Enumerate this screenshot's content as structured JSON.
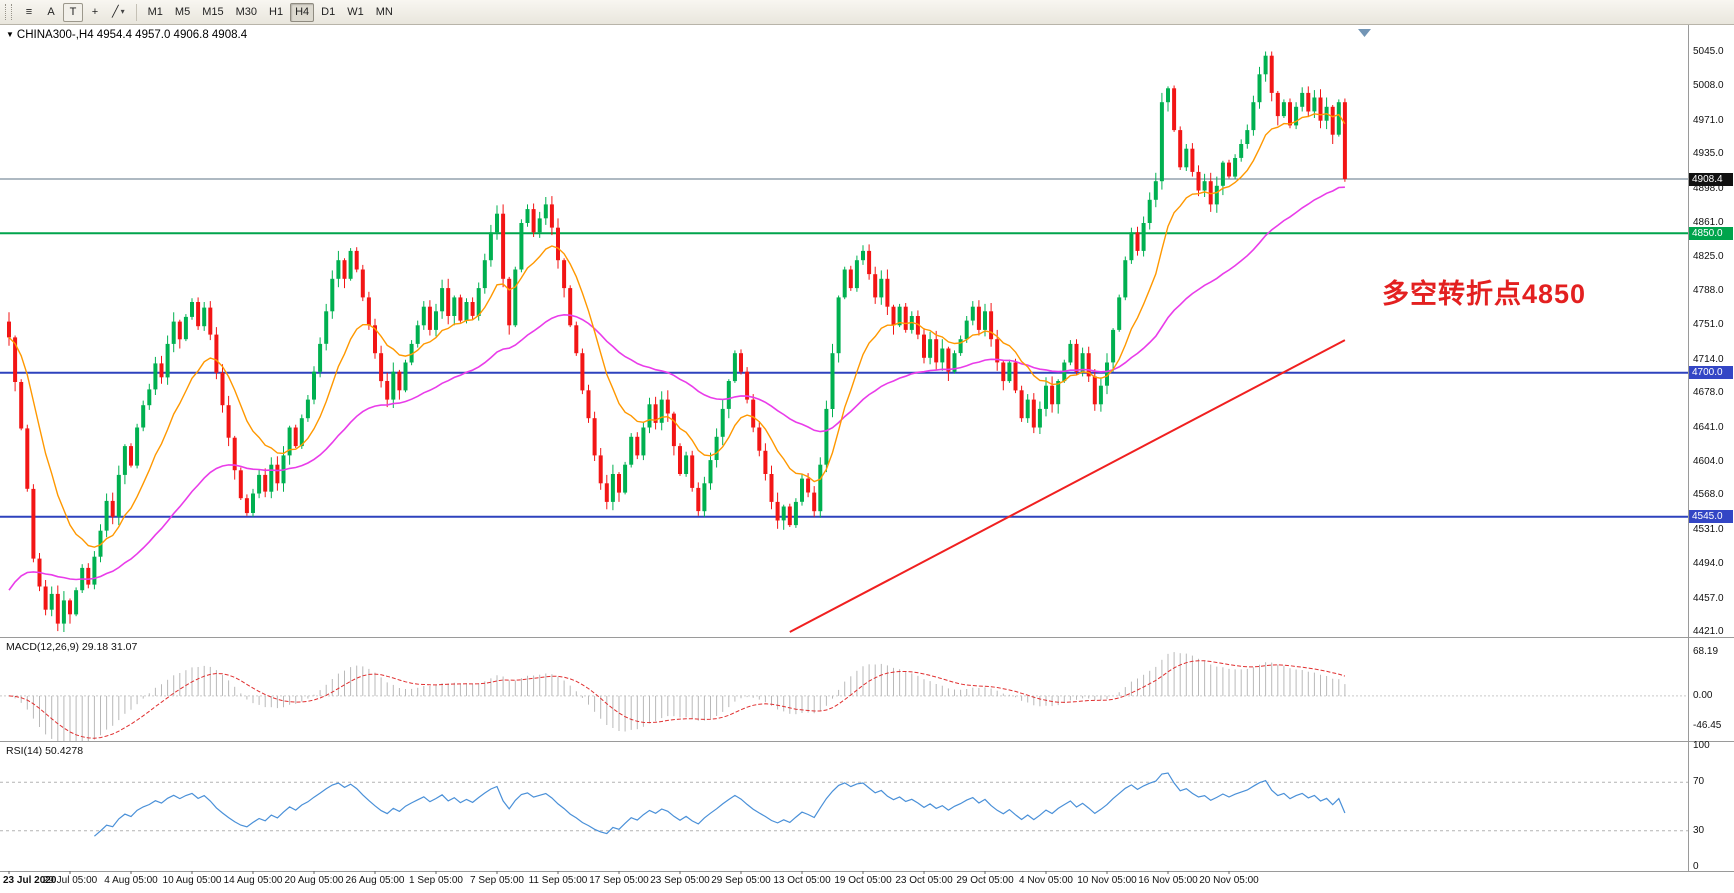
{
  "toolbar": {
    "tool_a": "A",
    "tool_t": "T",
    "icons": {
      "menu": "≡",
      "crosshair": "+",
      "draw": "╱",
      "caret": "▾"
    },
    "timeframes": [
      "M1",
      "M5",
      "M15",
      "M30",
      "H1",
      "H4",
      "D1",
      "W1",
      "MN"
    ],
    "selected_timeframe": "H4"
  },
  "chart": {
    "collapse_icon": "▼",
    "symbol_label": "CHINA300-,H4 4954.4 4957.0 4906.8 4908.4",
    "annotation": {
      "text": "多空转折点4850",
      "color": "#e32020"
    },
    "y_ticks": [
      "5045.0",
      "5008.0",
      "4971.0",
      "4935.0",
      "4898.0",
      "4861.0",
      "4825.0",
      "4788.0",
      "4751.0",
      "4714.0",
      "4678.0",
      "4641.0",
      "4604.0",
      "4568.0",
      "4531.0",
      "4494.0",
      "4457.0",
      "4421.0"
    ],
    "tags": [
      {
        "text": "4908.4",
        "price": 4908.4,
        "bg": "#111111"
      },
      {
        "text": "4850.0",
        "price": 4850.0,
        "bg": "#00a44c"
      },
      {
        "text": "4700.0",
        "price": 4700.0,
        "bg": "#3346c5"
      },
      {
        "text": "4545.0",
        "price": 4545.0,
        "bg": "#3346c5"
      }
    ],
    "hlines": [
      {
        "price": 4908.4,
        "color": "#5d7386",
        "width": 1
      },
      {
        "price": 4850.0,
        "color": "#00a44c",
        "width": 2
      },
      {
        "price": 4700.0,
        "color": "#2e42bd",
        "width": 2
      },
      {
        "price": 4545.0,
        "color": "#2e42bd",
        "width": 2
      }
    ],
    "trendline": {
      "i1": 128,
      "p1": 4421,
      "i2": 219,
      "p2": 4735,
      "color": "#f02020",
      "width": 2
    },
    "colors": {
      "up": "#00b050",
      "down": "#f21515",
      "ma_fast": "#ff9800",
      "ma_slow": "#e93ce9",
      "macd_hist": "#b9b9b9",
      "macd_signal": "#e03030",
      "rsi_line": "#4a90d8"
    }
  },
  "chart_data": {
    "type": "candlestick",
    "title": "CHINA300-,H4",
    "symbol": "CHINA300-",
    "timeframe": "H4",
    "ohlc_current": {
      "open": 4954.4,
      "high": 4957.0,
      "low": 4906.8,
      "close": 4908.4
    },
    "price_axis": {
      "min": 4421.0,
      "max": 5045.0
    },
    "first_open": 4755,
    "closes": [
      4738,
      4690,
      4640,
      4575,
      4500,
      4470,
      4445,
      4462,
      4430,
      4455,
      4440,
      4466,
      4490,
      4472,
      4502,
      4530,
      4562,
      4545,
      4590,
      4621,
      4600,
      4641,
      4665,
      4682,
      4710,
      4695,
      4731,
      4755,
      4736,
      4760,
      4776,
      4750,
      4770,
      4741,
      4700,
      4665,
      4630,
      4595,
      4565,
      4549,
      4570,
      4590,
      4572,
      4601,
      4581,
      4611,
      4641,
      4621,
      4651,
      4671,
      4701,
      4731,
      4766,
      4801,
      4821,
      4801,
      4831,
      4811,
      4781,
      4751,
      4721,
      4691,
      4671,
      4701,
      4681,
      4711,
      4731,
      4751,
      4771,
      4746,
      4766,
      4791,
      4761,
      4781,
      4756,
      4776,
      4761,
      4791,
      4821,
      4851,
      4871,
      4801,
      4751,
      4811,
      4861,
      4876,
      4851,
      4866,
      4881,
      4856,
      4821,
      4791,
      4751,
      4721,
      4681,
      4651,
      4611,
      4581,
      4561,
      4591,
      4571,
      4601,
      4631,
      4611,
      4641,
      4666,
      4646,
      4671,
      4656,
      4621,
      4591,
      4611,
      4576,
      4551,
      4581,
      4606,
      4631,
      4661,
      4691,
      4721,
      4701,
      4671,
      4641,
      4616,
      4591,
      4561,
      4541,
      4556,
      4536,
      4561,
      4586,
      4571,
      4551,
      4601,
      4661,
      4721,
      4781,
      4811,
      4791,
      4821,
      4831,
      4806,
      4781,
      4801,
      4771,
      4751,
      4771,
      4746,
      4761,
      4741,
      4716,
      4736,
      4711,
      4726,
      4701,
      4721,
      4736,
      4756,
      4771,
      4746,
      4766,
      4736,
      4711,
      4691,
      4711,
      4681,
      4651,
      4671,
      4641,
      4661,
      4686,
      4666,
      4691,
      4711,
      4731,
      4701,
      4721,
      4696,
      4666,
      4686,
      4711,
      4746,
      4781,
      4821,
      4851,
      4831,
      4861,
      4886,
      4906,
      4991,
      5006,
      4961,
      4921,
      4941,
      4916,
      4896,
      4906,
      4881,
      4901,
      4926,
      4911,
      4931,
      4946,
      4961,
      4991,
      5021,
      5041,
      5001,
      4976,
      4991,
      4966,
      4986,
      5001,
      4981,
      4996,
      4971,
      4986,
      4956,
      4991,
      4908.4
    ],
    "ma": {
      "fast_period": 13,
      "slow_period": 50,
      "slow_seed": 4455
    },
    "x_labels": [
      {
        "text": "23 Jul 2020",
        "index": 0
      },
      {
        "text": "29 Jul 05:00",
        "index": 10
      },
      {
        "text": "4 Aug 05:00",
        "index": 20
      },
      {
        "text": "10 Aug 05:00",
        "index": 30
      },
      {
        "text": "14 Aug 05:00",
        "index": 40
      },
      {
        "text": "20 Aug 05:00",
        "index": 50
      },
      {
        "text": "26 Aug 05:00",
        "index": 60
      },
      {
        "text": "1 Sep 05:00",
        "index": 70
      },
      {
        "text": "7 Sep 05:00",
        "index": 80
      },
      {
        "text": "11 Sep 05:00",
        "index": 90
      },
      {
        "text": "17 Sep 05:00",
        "index": 100
      },
      {
        "text": "23 Sep 05:00",
        "index": 110
      },
      {
        "text": "29 Sep 05:00",
        "index": 120
      },
      {
        "text": "13 Oct 05:00",
        "index": 130
      },
      {
        "text": "19 Oct 05:00",
        "index": 140
      },
      {
        "text": "23 Oct 05:00",
        "index": 150
      },
      {
        "text": "29 Oct 05:00",
        "index": 160
      },
      {
        "text": "4 Nov 05:00",
        "index": 170
      },
      {
        "text": "10 Nov 05:00",
        "index": 180
      },
      {
        "text": "16 Nov 05:00",
        "index": 190
      },
      {
        "text": "20 Nov 05:00",
        "index": 200
      }
    ]
  },
  "macd": {
    "label": "MACD(12,26,9) 29.18 31.07",
    "params": {
      "fast": 12,
      "slow": 26,
      "signal": 9
    },
    "values": {
      "macd": 29.18,
      "signal": 31.07
    },
    "ticks": [
      {
        "text": "68.19",
        "value": 68.19
      },
      {
        "text": "0.00",
        "value": 0
      },
      {
        "text": "-46.45",
        "value": -46.45
      }
    ]
  },
  "rsi": {
    "label": "RSI(14) 50.4278",
    "period": 14,
    "value": 50.4278,
    "levels": [
      70,
      30
    ],
    "ticks": [
      {
        "text": "100",
        "value": 100
      },
      {
        "text": "70",
        "value": 70
      },
      {
        "text": "30",
        "value": 30
      },
      {
        "text": "0",
        "value": 0
      }
    ]
  }
}
